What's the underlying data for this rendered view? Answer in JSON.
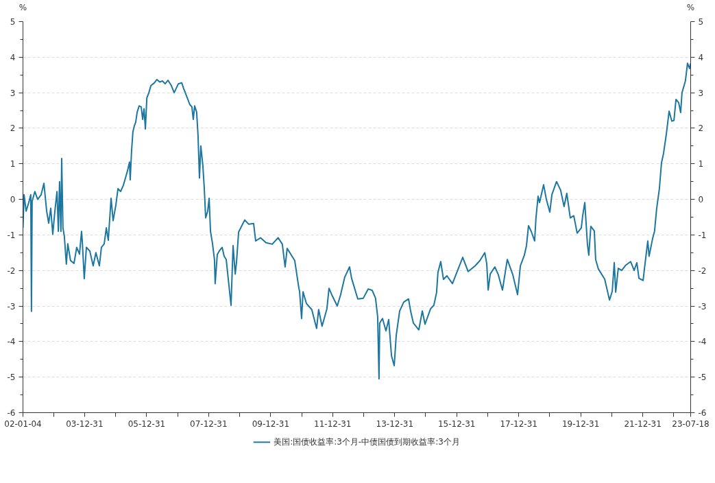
{
  "chart_data": {
    "type": "line",
    "ylabel": "%",
    "y2label": "%",
    "xlim": [
      "2002-01-04",
      "2023-07-18"
    ],
    "xticks": [
      {
        "value": "2002-01-04",
        "label": "02-01-04"
      },
      {
        "value": "2002-12-31",
        "label": null
      },
      {
        "value": "2003-12-31",
        "label": "03-12-31"
      },
      {
        "value": "2004-12-31",
        "label": null
      },
      {
        "value": "2005-12-31",
        "label": "05-12-31"
      },
      {
        "value": "2006-12-31",
        "label": null
      },
      {
        "value": "2007-12-31",
        "label": "07-12-31"
      },
      {
        "value": "2008-12-31",
        "label": null
      },
      {
        "value": "2009-12-31",
        "label": "09-12-31"
      },
      {
        "value": "2010-12-31",
        "label": null
      },
      {
        "value": "2011-12-31",
        "label": "11-12-31"
      },
      {
        "value": "2012-12-31",
        "label": null
      },
      {
        "value": "2013-12-31",
        "label": "13-12-31"
      },
      {
        "value": "2014-12-31",
        "label": null
      },
      {
        "value": "2015-12-31",
        "label": "15-12-31"
      },
      {
        "value": "2016-12-31",
        "label": null
      },
      {
        "value": "2017-12-31",
        "label": "17-12-31"
      },
      {
        "value": "2018-12-31",
        "label": null
      },
      {
        "value": "2019-12-31",
        "label": "19-12-31"
      },
      {
        "value": "2020-12-31",
        "label": null
      },
      {
        "value": "2021-12-31",
        "label": "21-12-31"
      },
      {
        "value": "2022-12-31",
        "label": null
      },
      {
        "value": "2023-07-18",
        "label": "23-07-18"
      }
    ],
    "ylim": [
      -6,
      5
    ],
    "yticks": [
      -6,
      -5,
      -4,
      -3,
      -2,
      -1,
      0,
      1,
      2,
      3,
      4,
      5
    ],
    "y2lim": [
      -6,
      5
    ],
    "y2ticks": [
      -6,
      -5,
      -4,
      -3,
      -2,
      -1,
      0,
      1,
      2,
      3,
      4,
      5
    ],
    "grid": "y",
    "legend": "bottom",
    "line_style": "solid",
    "series": [
      {
        "name": "美国:国债收益率:3个月-中债国债到期收益率:3个月",
        "color": "#1b76a0",
        "x": [
          "2002-01-04",
          "2002-01-17",
          "2002-02-10",
          "2002-03-12",
          "2002-04-06",
          "2002-04-14",
          "2002-04-22",
          "2002-05-24",
          "2002-06-26",
          "2002-08-06",
          "2002-09-08",
          "2002-10-10",
          "2002-11-03",
          "2002-11-27",
          "2002-12-21",
          "2003-01-15",
          "2003-02-09",
          "2003-02-25",
          "2003-03-11",
          "2003-03-27",
          "2003-04-05",
          "2003-04-20",
          "2003-05-06",
          "2003-05-30",
          "2003-06-16",
          "2003-07-18",
          "2003-08-28",
          "2003-09-29",
          "2003-11-01",
          "2003-11-25",
          "2003-12-03",
          "2003-12-27",
          "2004-01-21",
          "2004-03-01",
          "2004-04-10",
          "2004-05-12",
          "2004-06-22",
          "2004-07-16",
          "2004-08-18",
          "2004-09-12",
          "2004-10-05",
          "2004-11-07",
          "2004-12-01",
          "2005-01-03",
          "2005-01-27",
          "2005-02-27",
          "2005-04-01",
          "2005-04-25",
          "2005-05-19",
          "2005-06-12",
          "2005-06-20",
          "2005-07-06",
          "2005-07-22",
          "2005-08-08",
          "2005-08-24",
          "2005-09-10",
          "2005-10-04",
          "2005-10-28",
          "2005-11-14",
          "2005-11-30",
          "2005-12-16",
          "2006-01-02",
          "2006-01-26",
          "2006-02-19",
          "2006-03-29",
          "2006-05-01",
          "2006-06-03",
          "2006-07-05",
          "2006-08-06",
          "2006-09-08",
          "2006-10-18",
          "2006-11-20",
          "2007-01-08",
          "2007-02-17",
          "2007-03-11",
          "2007-04-21",
          "2007-05-23",
          "2007-06-17",
          "2007-07-03",
          "2007-07-19",
          "2007-08-12",
          "2007-08-28",
          "2007-09-14",
          "2007-09-30",
          "2007-10-24",
          "2007-11-10",
          "2007-11-26",
          "2007-12-20",
          "2008-01-06",
          "2008-01-22",
          "2008-02-15",
          "2008-03-09",
          "2008-03-17",
          "2008-04-11",
          "2008-05-05",
          "2008-06-07",
          "2008-07-01",
          "2008-07-25",
          "2008-09-20",
          "2008-10-14",
          "2008-11-08",
          "2008-11-24",
          "2008-12-18",
          "2009-02-28",
          "2009-04-17",
          "2009-06-13",
          "2009-07-07",
          "2009-09-02",
          "2009-11-06",
          "2010-01-18",
          "2010-03-29",
          "2010-05-17",
          "2010-06-19",
          "2010-07-13",
          "2010-09-16",
          "2010-10-10",
          "2010-11-28",
          "2010-12-06",
          "2010-12-30",
          "2011-01-16",
          "2011-02-25",
          "2011-04-29",
          "2011-06-25",
          "2011-07-19",
          "2011-08-28",
          "2011-10-24",
          "2011-11-18",
          "2011-12-20",
          "2012-02-23",
          "2012-04-03",
          "2012-05-21",
          "2012-07-17",
          "2012-08-10",
          "2012-10-22",
          "2012-12-26",
          "2013-02-21",
          "2013-04-10",
          "2013-05-19",
          "2013-06-13",
          "2013-06-29",
          "2013-07-07",
          "2013-08-09",
          "2013-09-19",
          "2013-10-21",
          "2013-11-23",
          "2013-12-25",
          "2014-01-18",
          "2014-02-27",
          "2014-04-16",
          "2014-06-12",
          "2014-07-06",
          "2014-08-08",
          "2014-10-11",
          "2014-11-21",
          "2014-12-23",
          "2015-02-26",
          "2015-04-06",
          "2015-05-08",
          "2015-05-24",
          "2015-06-26",
          "2015-07-28",
          "2015-09-07",
          "2015-11-11",
          "2016-03-11",
          "2016-05-14",
          "2016-08-04",
          "2016-09-30",
          "2016-11-26",
          "2016-12-19",
          "2017-01-05",
          "2017-01-29",
          "2017-03-25",
          "2017-05-04",
          "2017-06-22",
          "2017-08-18",
          "2017-10-22",
          "2017-12-17",
          "2018-01-19",
          "2018-03-07",
          "2018-04-01",
          "2018-04-25",
          "2018-05-27",
          "2018-07-06",
          "2018-07-22",
          "2018-08-16",
          "2018-09-02",
          "2018-10-20",
          "2018-11-21",
          "2019-01-01",
          "2019-01-25",
          "2019-03-21",
          "2019-05-08",
          "2019-06-18",
          "2019-07-20",
          "2019-08-30",
          "2019-10-10",
          "2019-11-19",
          "2020-01-07",
          "2020-01-23",
          "2020-02-17",
          "2020-03-19",
          "2020-04-04",
          "2020-04-28",
          "2020-06-08",
          "2020-06-24",
          "2020-07-26",
          "2020-10-08",
          "2020-12-04",
          "2021-01-05",
          "2021-01-29",
          "2021-02-15",
          "2021-03-17",
          "2021-04-27",
          "2021-06-14",
          "2021-08-10",
          "2021-09-20",
          "2021-10-22",
          "2021-11-16",
          "2022-01-04",
          "2022-01-20",
          "2022-02-28",
          "2022-03-15",
          "2022-04-25",
          "2022-05-19",
          "2022-06-12",
          "2022-07-15",
          "2022-08-08",
          "2022-09-02",
          "2022-10-04",
          "2022-11-06",
          "2022-12-08",
          "2023-01-02",
          "2023-01-26",
          "2023-02-27",
          "2023-03-22",
          "2023-04-07",
          "2023-05-17",
          "2023-06-11",
          "2023-07-05",
          "2023-07-18"
        ],
        "values": [
          -0.8,
          0.13,
          -0.33,
          -0.1,
          0.13,
          -3.15,
          -0.05,
          0.22,
          0,
          0.13,
          0.45,
          -0.33,
          -0.67,
          -0.25,
          -0.98,
          -0.33,
          0.22,
          -0.9,
          0.5,
          -0.9,
          1.15,
          -0.8,
          -1.03,
          -1.82,
          -1.25,
          -1.72,
          -1.8,
          -1.35,
          -1.54,
          -0.9,
          -1.15,
          -2.23,
          -1.35,
          -1.45,
          -1.87,
          -1.5,
          -1.87,
          -1.35,
          -1.25,
          -0.8,
          -1.15,
          0.03,
          -0.6,
          -0.15,
          0.3,
          0.22,
          0.4,
          0.6,
          0.8,
          1.05,
          0.55,
          1.35,
          1.9,
          2.07,
          2.17,
          2.45,
          2.63,
          2.6,
          2.25,
          2.55,
          1.98,
          2.85,
          3.0,
          3.2,
          3.27,
          3.37,
          3.3,
          3.33,
          3.25,
          3.35,
          3.2,
          3.0,
          3.25,
          3.28,
          3.12,
          2.87,
          2.67,
          2.6,
          2.25,
          2.63,
          2.45,
          1.8,
          0.6,
          1.5,
          0.95,
          0.3,
          -0.52,
          -0.33,
          0.03,
          -0.9,
          -1.25,
          -1.7,
          -2.37,
          -1.55,
          -1.45,
          -1.35,
          -1.6,
          -1.69,
          -2.98,
          -1.3,
          -2.1,
          -1.75,
          -0.92,
          -0.58,
          -0.7,
          -0.68,
          -1.17,
          -1.08,
          -1.22,
          -1.26,
          -1.08,
          -1.26,
          -1.9,
          -1.38,
          -1.63,
          -1.72,
          -2.5,
          -2.58,
          -3.35,
          -2.6,
          -2.93,
          -3.1,
          -3.63,
          -3.1,
          -3.57,
          -3.08,
          -2.5,
          -2.68,
          -3.0,
          -2.68,
          -2.19,
          -1.9,
          -2.22,
          -2.8,
          -2.78,
          -2.52,
          -2.56,
          -2.78,
          -3.3,
          -5.05,
          -3.48,
          -3.35,
          -3.7,
          -3.38,
          -4.4,
          -4.68,
          -3.82,
          -3.14,
          -2.89,
          -2.8,
          -3.14,
          -3.48,
          -3.67,
          -3.14,
          -3.51,
          -3.08,
          -2.98,
          -2.62,
          -2.06,
          -1.75,
          -2.25,
          -2.15,
          -2.37,
          -1.63,
          -2.03,
          -1.87,
          -1.72,
          -1.5,
          -1.81,
          -2.55,
          -2.1,
          -1.9,
          -2.12,
          -2.55,
          -1.69,
          -2.12,
          -2.68,
          -1.87,
          -1.57,
          -1.3,
          -0.74,
          -0.9,
          -1.17,
          -0.52,
          0.09,
          -0.09,
          0.41,
          0,
          -0.36,
          0.13,
          0.5,
          0.26,
          -0.2,
          0.17,
          -0.52,
          -0.46,
          -0.95,
          -0.8,
          -0.46,
          -0.09,
          -1.26,
          -1.57,
          -0.76,
          -0.89,
          -1.69,
          -1.96,
          -2.24,
          -2.83,
          -2.59,
          -1.78,
          -2.61,
          -1.94,
          -2.0,
          -1.85,
          -1.75,
          -2.0,
          -1.78,
          -2.22,
          -2.28,
          -1.94,
          -1.17,
          -1.6,
          -1.11,
          -0.89,
          -0.27,
          0.31,
          1.02,
          1.3,
          1.83,
          2.48,
          2.2,
          2.22,
          2.81,
          2.72,
          2.44,
          3.0,
          3.33,
          3.83,
          3.68,
          3.83
        ]
      }
    ]
  }
}
